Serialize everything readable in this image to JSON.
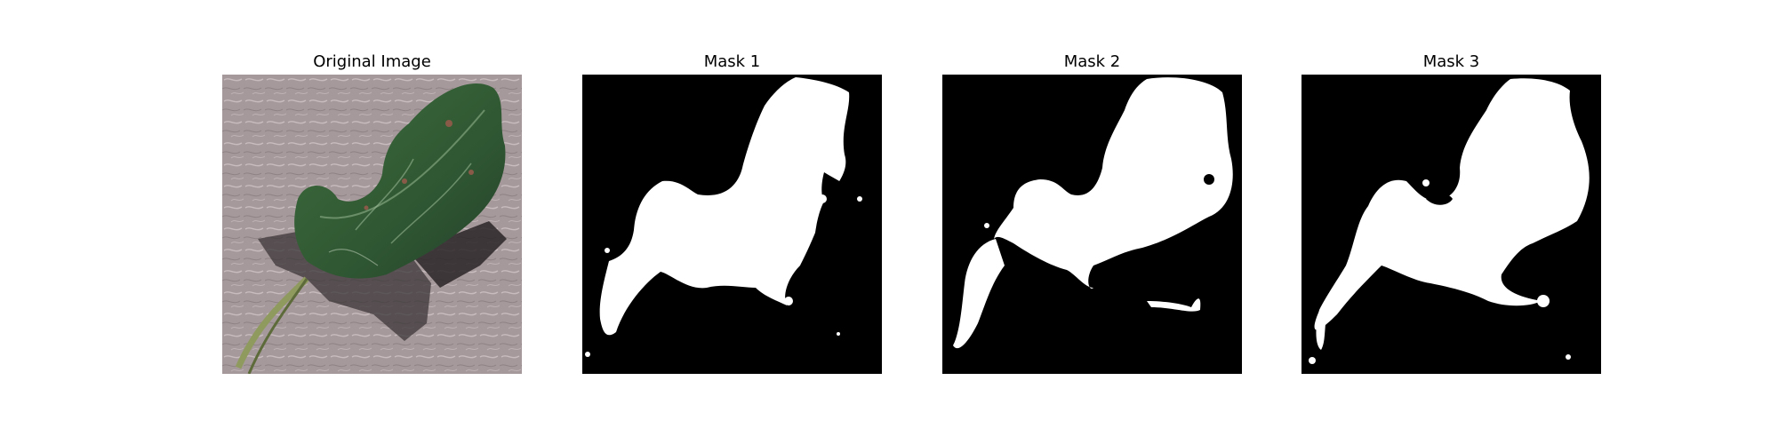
{
  "figure": {
    "panels": [
      {
        "title": "Original Image",
        "kind": "photo"
      },
      {
        "title": "Mask 1",
        "kind": "mask"
      },
      {
        "title": "Mask 2",
        "kind": "mask"
      },
      {
        "title": "Mask 3",
        "kind": "mask"
      }
    ],
    "colors": {
      "background": "#ffffff",
      "mask_background": "#000000",
      "mask_foreground": "#ffffff",
      "leaf_dark": "#2b4f2e",
      "leaf_mid": "#3e6b3d",
      "surface": "#a89a9c"
    }
  }
}
